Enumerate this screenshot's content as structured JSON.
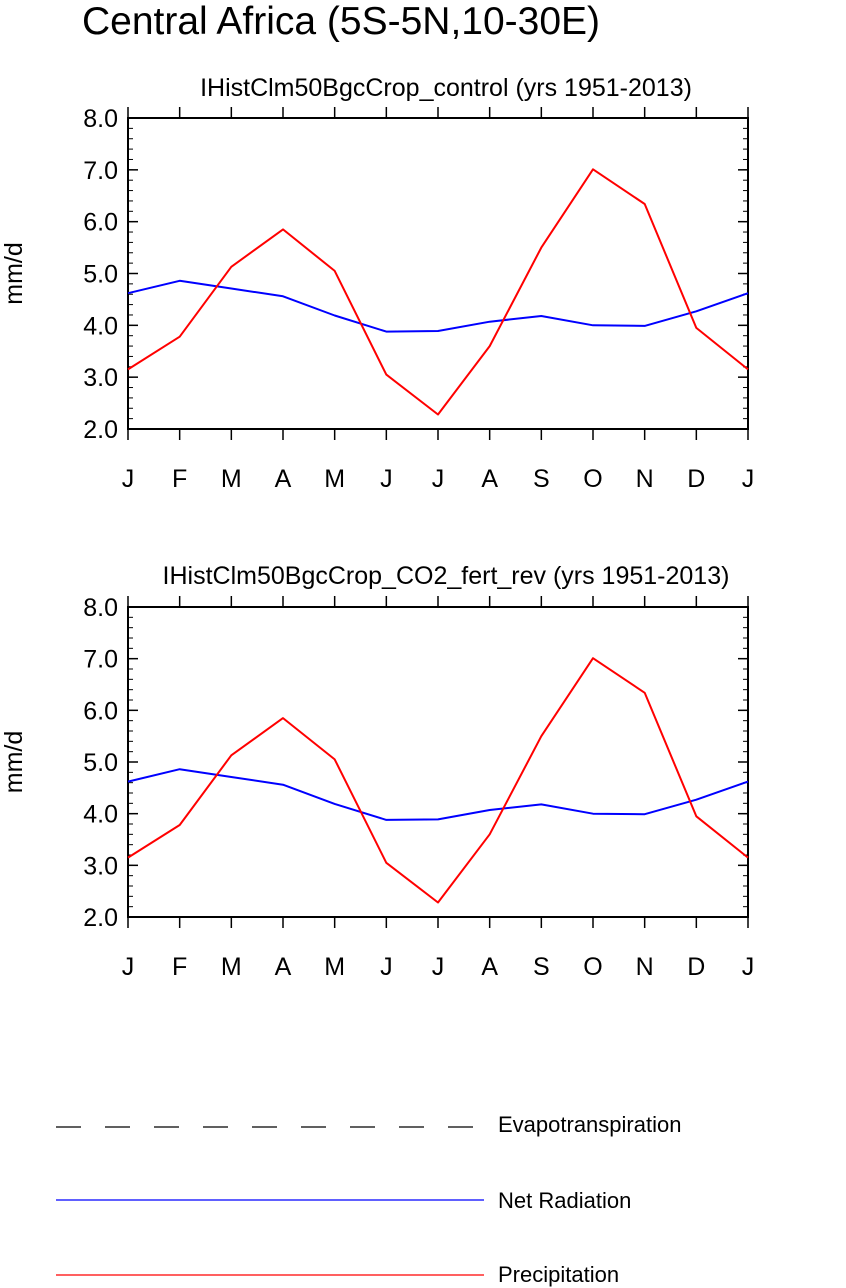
{
  "page": {
    "title": "Central Africa (5S-5N,10-30E)"
  },
  "colors": {
    "net_radiation": "#0000ff",
    "precipitation": "#ff0000",
    "evapotranspiration": "#000000"
  },
  "chart_data": [
    {
      "type": "line",
      "title": "IHistClm50BgcCrop_control (yrs 1951-2013)",
      "xlabel": "",
      "ylabel": "mm/d",
      "categories": [
        "J",
        "F",
        "M",
        "A",
        "M",
        "J",
        "J",
        "A",
        "S",
        "O",
        "N",
        "D",
        "J"
      ],
      "ylim": [
        2.0,
        8.0
      ],
      "yticks": [
        "2.0",
        "3.0",
        "4.0",
        "5.0",
        "6.0",
        "7.0",
        "8.0"
      ],
      "series": [
        {
          "name": "Net Radiation",
          "color": "#0000ff",
          "values": [
            4.62,
            4.86,
            4.71,
            4.56,
            4.19,
            3.88,
            3.89,
            4.07,
            4.18,
            4.0,
            3.99,
            4.27,
            4.62
          ]
        },
        {
          "name": "Precipitation",
          "color": "#ff0000",
          "values": [
            3.15,
            3.78,
            5.13,
            5.85,
            5.05,
            3.05,
            2.28,
            3.6,
            5.5,
            7.01,
            6.34,
            3.95,
            3.15
          ]
        }
      ]
    },
    {
      "type": "line",
      "title": "IHistClm50BgcCrop_CO2_fert_rev (yrs 1951-2013)",
      "xlabel": "",
      "ylabel": "mm/d",
      "categories": [
        "J",
        "F",
        "M",
        "A",
        "M",
        "J",
        "J",
        "A",
        "S",
        "O",
        "N",
        "D",
        "J"
      ],
      "ylim": [
        2.0,
        8.0
      ],
      "yticks": [
        "2.0",
        "3.0",
        "4.0",
        "5.0",
        "6.0",
        "7.0",
        "8.0"
      ],
      "series": [
        {
          "name": "Net Radiation",
          "color": "#0000ff",
          "values": [
            4.62,
            4.86,
            4.71,
            4.56,
            4.19,
            3.88,
            3.89,
            4.07,
            4.18,
            4.0,
            3.99,
            4.27,
            4.62
          ]
        },
        {
          "name": "Precipitation",
          "color": "#ff0000",
          "values": [
            3.15,
            3.78,
            5.13,
            5.85,
            5.05,
            3.05,
            2.28,
            3.6,
            5.5,
            7.01,
            6.34,
            3.95,
            3.15
          ]
        }
      ]
    }
  ],
  "legend": {
    "items": [
      {
        "label": "Evapotranspiration",
        "color": "#000000",
        "style": "dashed"
      },
      {
        "label": "Net Radiation",
        "color": "#0000ff",
        "style": "solid"
      },
      {
        "label": "Precipitation",
        "color": "#ff0000",
        "style": "solid"
      }
    ]
  }
}
